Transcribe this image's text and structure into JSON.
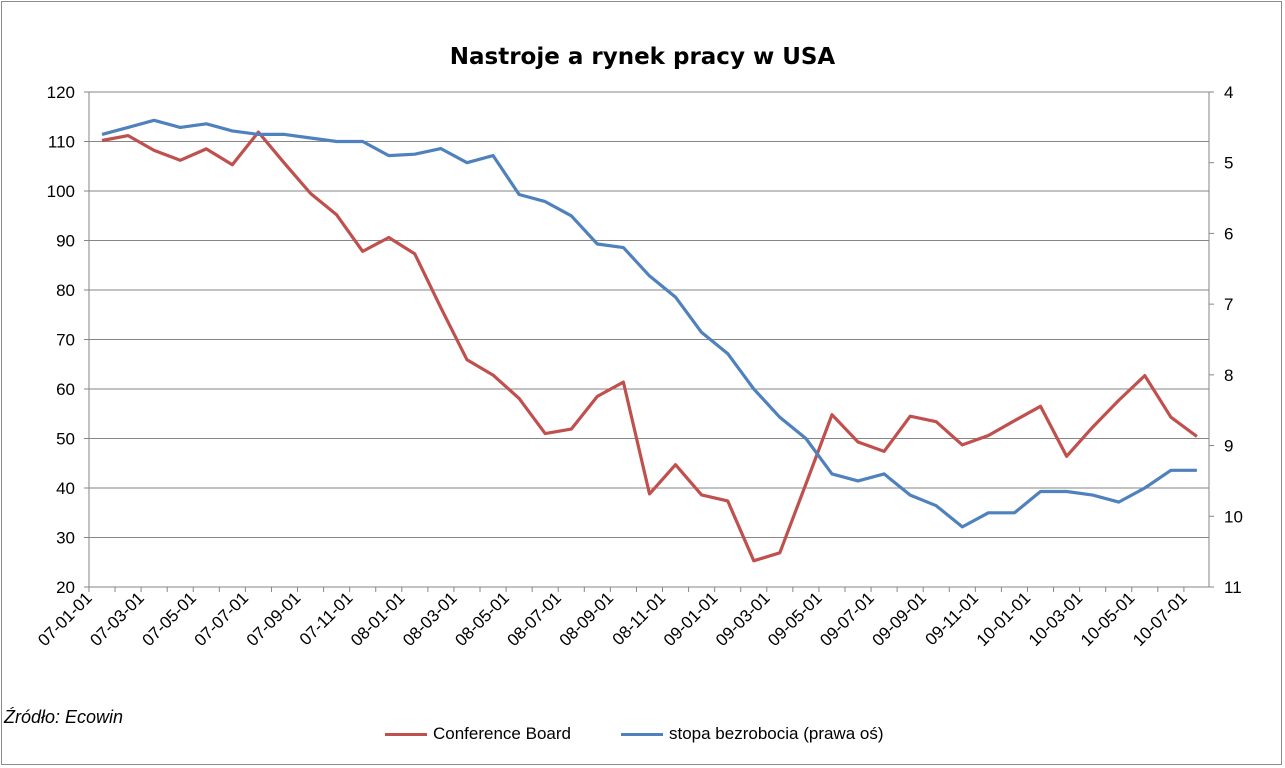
{
  "title": "Nastroje a rynek pracy w USA",
  "source": "Źródło: Ecowin",
  "colors": {
    "conference": "#c0504d",
    "unemployment": "#4f81bd",
    "axis": "#868686",
    "grid": "#868686"
  },
  "chart_data": {
    "type": "line",
    "title": "Nastroje a rynek pracy w USA",
    "x_tick_labels": [
      "07-01-01",
      "07-03-01",
      "07-05-01",
      "07-07-01",
      "07-09-01",
      "07-11-01",
      "08-01-01",
      "08-03-01",
      "08-05-01",
      "08-07-01",
      "08-09-01",
      "08-11-01",
      "09-01-01",
      "09-03-01",
      "09-05-01",
      "09-07-01",
      "09-09-01",
      "09-11-01",
      "10-01-01",
      "10-03-01",
      "10-05-01",
      "10-07-01"
    ],
    "y_left_ticks": [
      "120",
      "110",
      "100",
      "90",
      "80",
      "70",
      "60",
      "50",
      "40",
      "30",
      "20"
    ],
    "y_right_ticks": [
      "4",
      "5",
      "6",
      "7",
      "8",
      "9",
      "10",
      "11"
    ],
    "ylim_left": [
      20,
      120
    ],
    "ylim_right": [
      4,
      11
    ],
    "right_axis_inverted": true,
    "grid": "horizontal",
    "legend_position": "bottom",
    "series": [
      {
        "name": "Conference Board",
        "axis": "left",
        "values": [
          110.2,
          111.2,
          108.2,
          106.2,
          108.5,
          105.3,
          111.9,
          105.6,
          99.5,
          95.2,
          87.8,
          90.6,
          87.3,
          76.4,
          65.9,
          62.8,
          58.1,
          51.0,
          51.9,
          58.5,
          61.4,
          38.8,
          44.7,
          38.6,
          37.4,
          25.3,
          26.9,
          40.8,
          54.8,
          49.3,
          47.4,
          54.5,
          53.4,
          48.7,
          50.6,
          53.6,
          56.5,
          46.4,
          52.3,
          57.7,
          62.7,
          54.3,
          50.4
        ]
      },
      {
        "name": "stopa bezrobocia (prawa oś)",
        "axis": "right",
        "values": [
          4.6,
          4.5,
          4.4,
          4.5,
          4.45,
          4.55,
          4.6,
          4.6,
          4.65,
          4.7,
          4.7,
          4.9,
          4.88,
          4.8,
          5.0,
          4.9,
          5.45,
          5.55,
          5.75,
          6.15,
          6.2,
          6.6,
          6.9,
          7.4,
          7.7,
          8.2,
          8.6,
          8.9,
          9.4,
          9.5,
          9.4,
          9.7,
          9.85,
          10.15,
          9.95,
          9.95,
          9.65,
          9.65,
          9.7,
          9.8,
          9.6,
          9.35,
          9.35
        ]
      }
    ]
  }
}
